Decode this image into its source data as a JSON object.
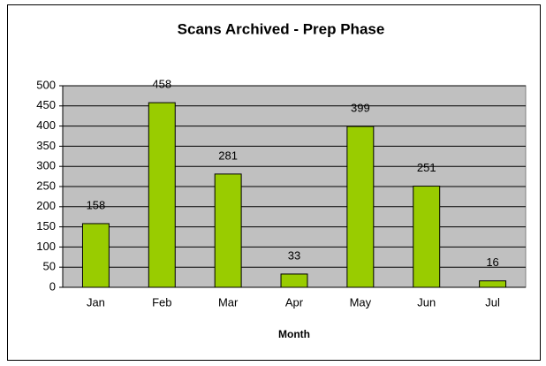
{
  "chart_data": {
    "type": "bar",
    "title": "Scans Archived - Prep Phase",
    "x_label": "Month",
    "categories": [
      "Jan",
      "Feb",
      "Mar",
      "Apr",
      "May",
      "Jun",
      "Jul"
    ],
    "values": [
      158,
      458,
      281,
      33,
      399,
      251,
      16
    ],
    "color": "#99cc00",
    "ylim": [
      0,
      500
    ],
    "yticks": [
      0,
      50,
      100,
      150,
      200,
      250,
      300,
      350,
      400,
      450,
      500
    ],
    "grid": true
  }
}
